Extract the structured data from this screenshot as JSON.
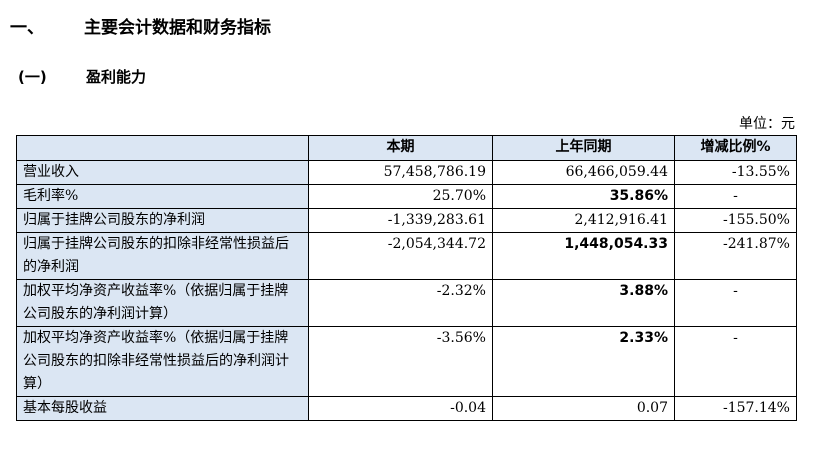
{
  "heading": {
    "number": "一、",
    "title": "主要会计数据和财务指标"
  },
  "subheading": {
    "number": "(一)",
    "title": "盈利能力"
  },
  "unit_label": "单位：元",
  "table": {
    "headers": [
      "",
      "本期",
      "上年同期",
      "增减比例%"
    ],
    "rows": [
      {
        "label": "营业收入",
        "current": "57,458,786.19",
        "previous": "66,466,059.44",
        "change": "-13.55%"
      },
      {
        "label": "毛利率%",
        "current": "25.70%",
        "previous": "35.86%",
        "change": "-"
      },
      {
        "label": "归属于挂牌公司股东的净利润",
        "current": "-1,339,283.61",
        "previous": "2,412,916.41",
        "change": "-155.50%"
      },
      {
        "label": "归属于挂牌公司股东的扣除非经常性损益后的净利润",
        "current": "-2,054,344.72",
        "previous": "1,448,054.33",
        "change": "-241.87%"
      },
      {
        "label": "加权平均净资产收益率%（依据归属于挂牌公司股东的净利润计算）",
        "current": "-2.32%",
        "previous": "3.88%",
        "change": "-"
      },
      {
        "label": "加权平均净资产收益率%（依据归属于挂牌公司股东的扣除非经常性损益后的净利润计算）",
        "current": "-3.56%",
        "previous": "2.33%",
        "change": "-"
      },
      {
        "label": "基本每股收益",
        "current": "-0.04",
        "previous": "0.07",
        "change": "-157.14%"
      }
    ]
  }
}
